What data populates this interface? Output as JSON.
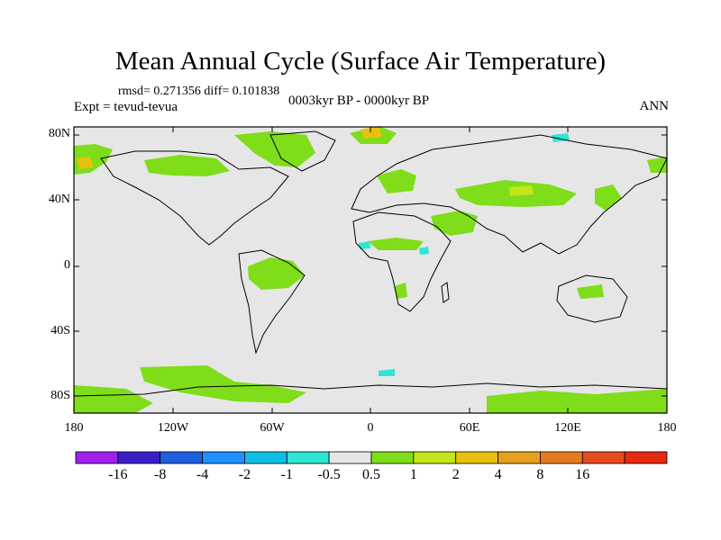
{
  "figure": {
    "title": "Mean Annual Cycle (Surface Air Temperature)",
    "subtitle": "rmsd= 0.271356 diff= 0.101838",
    "experiment": "Expt = tevud-tevua",
    "period": "0003kyr BP - 0000kyr BP",
    "season": "ANN"
  },
  "map": {
    "background_color": "#e6e6e6",
    "lat_ticks": [
      "80N",
      "40N",
      "0",
      "40S",
      "80S"
    ],
    "lon_ticks": [
      "180",
      "120W",
      "60W",
      "0",
      "60E",
      "120E",
      "180"
    ]
  },
  "colorbar": {
    "colors": [
      "#a020f0",
      "#3c1ec8",
      "#1e5fe0",
      "#1e90ff",
      "#10bfe6",
      "#2ee6d4",
      "#e6e6e6",
      "#7fdd1a",
      "#c2e61a",
      "#e6c20f",
      "#e6a01e",
      "#e67a1e",
      "#e64b1e",
      "#e62a0f"
    ],
    "labels": [
      "-16",
      "-8",
      "-4",
      "-2",
      "-1",
      "-0.5",
      "0.5",
      "1",
      "2",
      "4",
      "8",
      "16"
    ]
  }
}
